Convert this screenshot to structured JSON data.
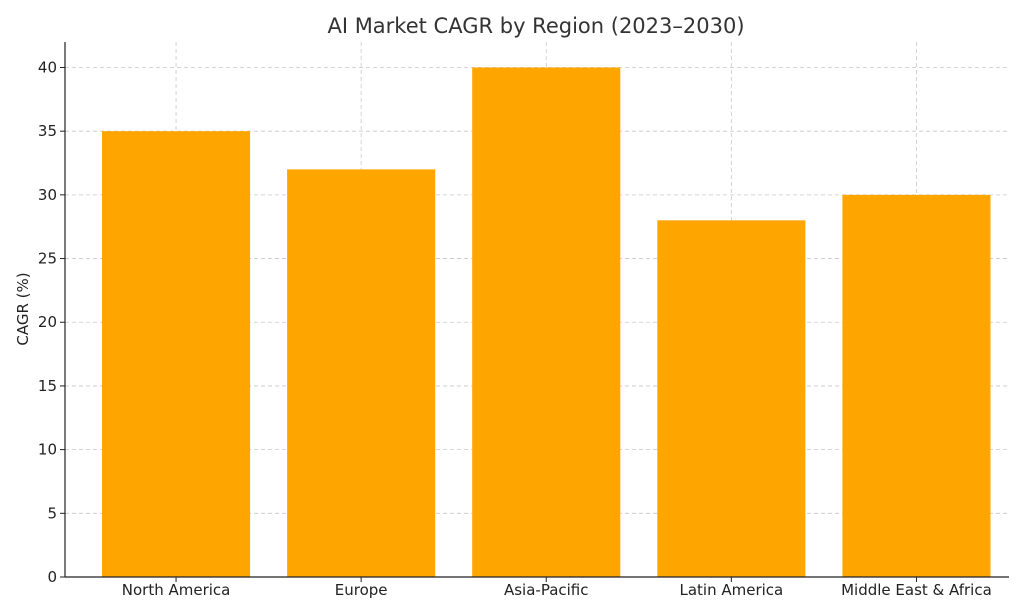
{
  "chart_data": {
    "type": "bar",
    "title": "AI Market CAGR by Region (2023–2030)",
    "xlabel": "",
    "ylabel": "CAGR (%)",
    "categories": [
      "North America",
      "Europe",
      "Asia-Pacific",
      "Latin America",
      "Middle East & Africa"
    ],
    "values": [
      35,
      32,
      40,
      28,
      30
    ],
    "ylim": [
      0,
      42
    ],
    "yticks": [
      0,
      5,
      10,
      15,
      20,
      25,
      30,
      35,
      40
    ],
    "grid": true,
    "bar_color": "#FFA500",
    "legend": "none"
  }
}
